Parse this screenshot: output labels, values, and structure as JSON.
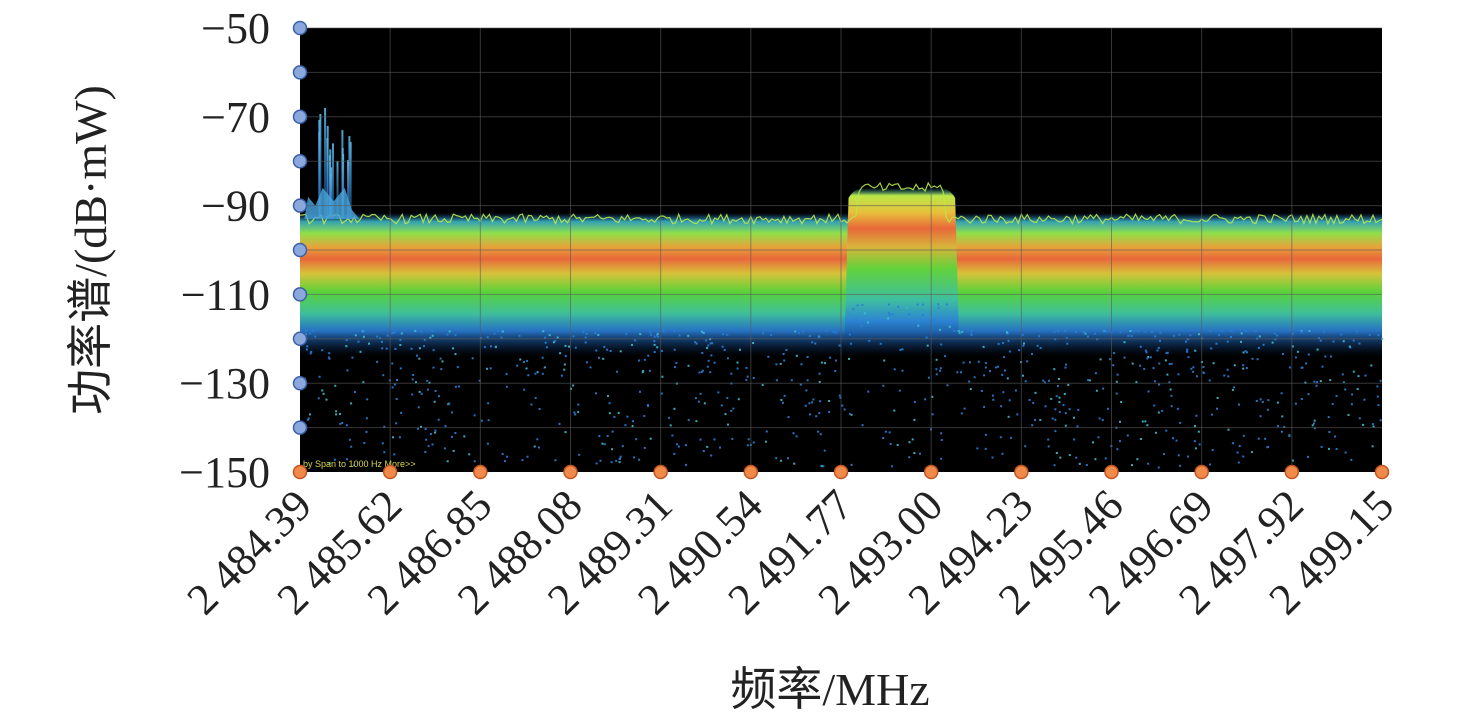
{
  "chart_data": {
    "type": "heatmap",
    "description_kind": "spectrum persistence display",
    "xlabel": "频率/MHz",
    "ylabel": "功率谱/(dB·mW)",
    "xlim": [
      2484.39,
      2499.15
    ],
    "ylim": [
      -150,
      -50
    ],
    "x_ticks": [
      2484.39,
      2485.62,
      2486.85,
      2488.08,
      2489.31,
      2490.54,
      2491.77,
      2493.0,
      2494.23,
      2495.46,
      2496.69,
      2497.92,
      2499.15
    ],
    "x_tick_labels": [
      "2 484.39",
      "2 485.62",
      "2 486.85",
      "2 488.08",
      "2 489.31",
      "2 490.54",
      "2 491.77",
      "2 493.00",
      "2 494.23",
      "2 495.46",
      "2 496.69",
      "2 497.92",
      "2 499.15"
    ],
    "y_ticks": [
      -50,
      -70,
      -90,
      -110,
      -130,
      -150
    ],
    "y_tick_labels": [
      "−50",
      "−70",
      "−90",
      "−110",
      "−130",
      "−150"
    ],
    "y_minor_ticks": [
      -60,
      -80,
      -100,
      -120,
      -140
    ],
    "grid": true,
    "overlay_text": "by Span to 1000 Hz   More>>",
    "noise_floor_top_dbm": -93,
    "noise_floor_core_dbm": -102,
    "noise_floor_bottom_dbm": -120,
    "signal_band": {
      "x_start": 2491.9,
      "x_end": 2493.3,
      "top_dbm": -86,
      "bottom_dbm": -112
    },
    "spurs": [
      {
        "x": 2484.7,
        "peak_dbm": -68
      },
      {
        "x": 2484.85,
        "peak_dbm": -76
      },
      {
        "x": 2485.0,
        "peak_dbm": -73
      }
    ]
  },
  "colors": {
    "background": "#000000",
    "grid": "#5a5a5a",
    "y_marker_fill": "#8aa8dc",
    "y_marker_stroke": "#3b5fa8",
    "x_marker_fill": "#f08a4a",
    "x_marker_stroke": "#c25420",
    "dense_core": "#e8683a",
    "mid_band": "#62d23a",
    "upper_band": "#b9e84a",
    "sparse_low": "#2a7fd8"
  }
}
